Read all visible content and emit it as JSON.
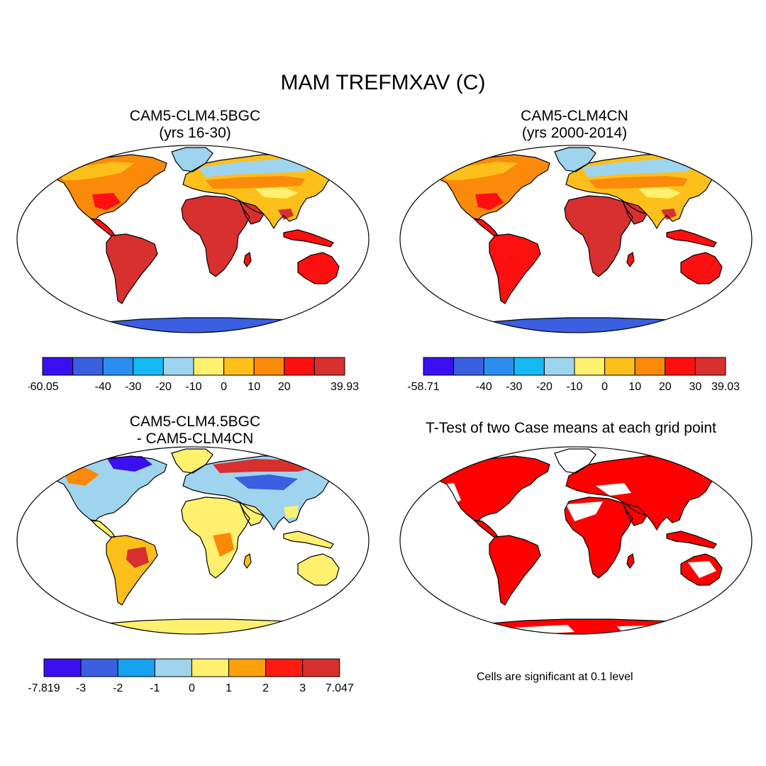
{
  "figure": {
    "title": "MAM TREFMXAV (C)",
    "note": "Cells are significant at 0.1 level"
  },
  "panels": [
    {
      "id": "bgc",
      "title_line1": "CAM5-CLM4.5BGC",
      "title_line2": "(yrs 16-30)",
      "colorbar": {
        "colors": [
          "#3a10f0",
          "#3a5fe0",
          "#2a8ef0",
          "#16b8f6",
          "#9fd4ee",
          "#fff06e",
          "#fdbf1a",
          "#fb8a0a",
          "#ff1010",
          "#d8302e"
        ],
        "labels": [
          "-60.05",
          "-40",
          "-30",
          "-20",
          "-10",
          "0",
          "10",
          "20",
          "39.93"
        ],
        "label_edges": [
          0,
          2,
          3,
          4,
          5,
          6,
          7,
          8,
          10
        ]
      }
    },
    {
      "id": "cn",
      "title_line1": "CAM5-CLM4CN",
      "title_line2": "(yrs 2000-2014)",
      "colorbar": {
        "colors": [
          "#3a10f0",
          "#3a5fe0",
          "#2a8ef0",
          "#16b8f6",
          "#9fd4ee",
          "#fff06e",
          "#fdbf1a",
          "#fb8a0a",
          "#ff1010",
          "#d8302e"
        ],
        "labels": [
          "-58.71",
          "-40",
          "-30",
          "-20",
          "-10",
          "0",
          "10",
          "20",
          "30",
          "39.03"
        ],
        "label_edges": [
          0,
          2,
          3,
          4,
          5,
          6,
          7,
          8,
          9,
          10
        ]
      }
    },
    {
      "id": "diff",
      "title_line1": "CAM5-CLM4.5BGC",
      "title_line2": "- CAM5-CLM4CN",
      "colorbar": {
        "colors": [
          "#3a10f0",
          "#3a5fe0",
          "#16a2f0",
          "#9fd4ee",
          "#fff06e",
          "#fca10c",
          "#ff1a10",
          "#d8302e"
        ],
        "labels": [
          "-7.819",
          "-3",
          "-2",
          "-1",
          "0",
          "1",
          "2",
          "3",
          "7.047"
        ],
        "label_edges": [
          0,
          1,
          2,
          3,
          4,
          5,
          6,
          7,
          8
        ]
      }
    },
    {
      "id": "ttest",
      "title_line1": "T-Test of two Case means at each grid point"
    }
  ]
}
